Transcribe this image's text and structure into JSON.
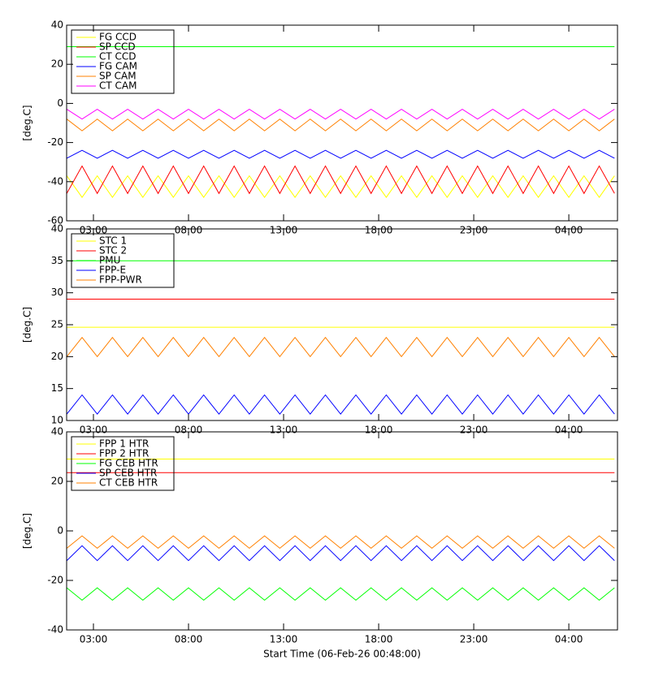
{
  "chart_data": [
    {
      "type": "line",
      "ylabel": "[deg.C]",
      "x": [
        1.6,
        2.4,
        3.2,
        4,
        4.8,
        5.6,
        6.4,
        7.2,
        8,
        8.8,
        9.6,
        10.4,
        11.2,
        12,
        12.8,
        13.6,
        14.4,
        15.2,
        16,
        16.8,
        17.6,
        18.4,
        19.2,
        20,
        20.8,
        21.6,
        22.4,
        23.2,
        24,
        24.8,
        25.6,
        26.4,
        27.2,
        28,
        28.8,
        29.6,
        30.4
      ],
      "xlim": [
        1.59,
        30.56
      ],
      "xticks": [
        {
          "value": 3,
          "label": "03:00"
        },
        {
          "value": 8,
          "label": "08:00"
        },
        {
          "value": 13,
          "label": "13:00"
        },
        {
          "value": 18,
          "label": "18:00"
        },
        {
          "value": 23,
          "label": "23:00"
        },
        {
          "value": 28,
          "label": "04:00"
        }
      ],
      "ylim": [
        -60,
        40
      ],
      "yticks": [
        -60,
        -40,
        -20,
        0,
        20,
        40
      ],
      "series": [
        {
          "name": "FG CCD",
          "color": "#ffff00",
          "values": [
            -37,
            -48,
            -37,
            -48,
            -37,
            -48,
            -37,
            -48,
            -37,
            -48,
            -37,
            -48,
            -37,
            -48,
            -37,
            -48,
            -37,
            -48,
            -37,
            -48,
            -37,
            -48,
            -37,
            -48,
            -37,
            -48,
            -37,
            -48,
            -37,
            -48,
            -37,
            -48,
            -37,
            -48,
            -37,
            -48,
            -37
          ]
        },
        {
          "name": "SP CCD",
          "color": "#ff0000",
          "values": [
            -46,
            -32,
            -46,
            -32,
            -46,
            -32,
            -46,
            -32,
            -46,
            -32,
            -46,
            -32,
            -46,
            -32,
            -46,
            -32,
            -46,
            -32,
            -46,
            -32,
            -46,
            -32,
            -46,
            -32,
            -46,
            -32,
            -46,
            -32,
            -46,
            -32,
            -46,
            -32,
            -46,
            -32,
            -46,
            -32,
            -46
          ]
        },
        {
          "name": "CT CCD",
          "color": "#00ff00",
          "values": [
            29,
            29,
            29,
            29,
            29,
            29,
            29,
            29,
            29,
            29,
            29,
            29,
            29,
            29,
            29,
            29,
            29,
            29,
            29,
            29,
            29,
            29,
            29,
            29,
            29,
            29,
            29,
            29,
            29,
            29,
            29,
            29,
            29,
            29,
            29,
            29,
            29
          ]
        },
        {
          "name": "FG CAM",
          "color": "#0000ff",
          "values": [
            -28,
            -24,
            -28,
            -24,
            -28,
            -24,
            -28,
            -24,
            -28,
            -24,
            -28,
            -24,
            -28,
            -24,
            -28,
            -24,
            -28,
            -24,
            -28,
            -24,
            -28,
            -24,
            -28,
            -24,
            -28,
            -24,
            -28,
            -24,
            -28,
            -24,
            -28,
            -24,
            -28,
            -24,
            -28,
            -24,
            -28
          ]
        },
        {
          "name": "SP CAM",
          "color": "#ff8000",
          "values": [
            -8,
            -14,
            -8,
            -14,
            -8,
            -14,
            -8,
            -14,
            -8,
            -14,
            -8,
            -14,
            -8,
            -14,
            -8,
            -14,
            -8,
            -14,
            -8,
            -14,
            -8,
            -14,
            -8,
            -14,
            -8,
            -14,
            -8,
            -14,
            -8,
            -14,
            -8,
            -14,
            -8,
            -14,
            -8,
            -14,
            -8
          ]
        },
        {
          "name": "CT CAM",
          "color": "#ff00ff",
          "values": [
            -3,
            -8,
            -3,
            -8,
            -3,
            -8,
            -3,
            -8,
            -3,
            -8,
            -3,
            -8,
            -3,
            -8,
            -3,
            -8,
            -3,
            -8,
            -3,
            -8,
            -3,
            -8,
            -3,
            -8,
            -3,
            -8,
            -3,
            -8,
            -3,
            -8,
            -3,
            -8,
            -3,
            -8,
            -3,
            -8,
            -3
          ]
        }
      ]
    },
    {
      "type": "line",
      "ylabel": "[deg.C]",
      "x": [
        1.6,
        2.4,
        3.2,
        4,
        4.8,
        5.6,
        6.4,
        7.2,
        8,
        8.8,
        9.6,
        10.4,
        11.2,
        12,
        12.8,
        13.6,
        14.4,
        15.2,
        16,
        16.8,
        17.6,
        18.4,
        19.2,
        20,
        20.8,
        21.6,
        22.4,
        23.2,
        24,
        24.8,
        25.6,
        26.4,
        27.2,
        28,
        28.8,
        29.6,
        30.4
      ],
      "xlim": [
        1.59,
        30.56
      ],
      "xticks": [
        {
          "value": 3,
          "label": "03:00"
        },
        {
          "value": 8,
          "label": "08:00"
        },
        {
          "value": 13,
          "label": "13:00"
        },
        {
          "value": 18,
          "label": "18:00"
        },
        {
          "value": 23,
          "label": "23:00"
        },
        {
          "value": 28,
          "label": "04:00"
        }
      ],
      "ylim": [
        10,
        40
      ],
      "yticks": [
        10,
        15,
        20,
        25,
        30,
        35,
        40
      ],
      "series": [
        {
          "name": "STC 1",
          "color": "#ffff00",
          "values": [
            24.6,
            24.6,
            24.6,
            24.6,
            24.6,
            24.6,
            24.6,
            24.6,
            24.6,
            24.6,
            24.6,
            24.6,
            24.6,
            24.6,
            24.6,
            24.6,
            24.6,
            24.6,
            24.6,
            24.6,
            24.6,
            24.6,
            24.6,
            24.6,
            24.6,
            24.6,
            24.6,
            24.6,
            24.6,
            24.6,
            24.6,
            24.6,
            24.6,
            24.6,
            24.6,
            24.6,
            24.6
          ]
        },
        {
          "name": "STC 2",
          "color": "#ff0000",
          "values": [
            29,
            29,
            29,
            29,
            29,
            29,
            29,
            29,
            29,
            29,
            29,
            29,
            29,
            29,
            29,
            29,
            29,
            29,
            29,
            29,
            29,
            29,
            29,
            29,
            29,
            29,
            29,
            29,
            29,
            29,
            29,
            29,
            29,
            29,
            29,
            29,
            29
          ]
        },
        {
          "name": "PMU",
          "color": "#00ff00",
          "values": [
            35,
            35,
            35,
            35,
            35,
            35,
            35,
            35,
            35,
            35,
            35,
            35,
            35,
            35,
            35,
            35,
            35,
            35,
            35,
            35,
            35,
            35,
            35,
            35,
            35,
            35,
            35,
            35,
            35,
            35,
            35,
            35,
            35,
            35,
            35,
            35,
            35
          ]
        },
        {
          "name": "FPP-E",
          "color": "#0000ff",
          "values": [
            11,
            14,
            11,
            14,
            11,
            14,
            11,
            14,
            11,
            14,
            11,
            14,
            11,
            14,
            11,
            14,
            11,
            14,
            11,
            14,
            11,
            14,
            11,
            14,
            11,
            14,
            11,
            14,
            11,
            14,
            11,
            14,
            11,
            14,
            11,
            14,
            11
          ]
        },
        {
          "name": "FPP-PWR",
          "color": "#ff8000",
          "values": [
            20,
            23,
            20,
            23,
            20,
            23,
            20,
            23,
            20,
            23,
            20,
            23,
            20,
            23,
            20,
            23,
            20,
            23,
            20,
            23,
            20,
            23,
            20,
            23,
            20,
            23,
            20,
            23,
            20,
            23,
            20,
            23,
            20,
            23,
            20,
            23,
            20
          ]
        }
      ]
    },
    {
      "type": "line",
      "ylabel": "[deg.C]",
      "xlabel": "Start Time (06-Feb-26 00:48:00)",
      "x": [
        1.6,
        2.4,
        3.2,
        4,
        4.8,
        5.6,
        6.4,
        7.2,
        8,
        8.8,
        9.6,
        10.4,
        11.2,
        12,
        12.8,
        13.6,
        14.4,
        15.2,
        16,
        16.8,
        17.6,
        18.4,
        19.2,
        20,
        20.8,
        21.6,
        22.4,
        23.2,
        24,
        24.8,
        25.6,
        26.4,
        27.2,
        28,
        28.8,
        29.6,
        30.4
      ],
      "xlim": [
        1.59,
        30.56
      ],
      "xticks": [
        {
          "value": 3,
          "label": "03:00"
        },
        {
          "value": 8,
          "label": "08:00"
        },
        {
          "value": 13,
          "label": "13:00"
        },
        {
          "value": 18,
          "label": "18:00"
        },
        {
          "value": 23,
          "label": "23:00"
        },
        {
          "value": 28,
          "label": "04:00"
        }
      ],
      "ylim": [
        -40,
        40
      ],
      "yticks": [
        -40,
        -20,
        0,
        20,
        40
      ],
      "series": [
        {
          "name": "FPP 1 HTR",
          "color": "#ffff00",
          "values": [
            29,
            29,
            29,
            29,
            29,
            29,
            29,
            29,
            29,
            29,
            29,
            29,
            29,
            29,
            29,
            29,
            29,
            29,
            29,
            29,
            29,
            29,
            29,
            29,
            29,
            29,
            29,
            29,
            29,
            29,
            29,
            29,
            29,
            29,
            29,
            29,
            29
          ]
        },
        {
          "name": "FPP 2 HTR",
          "color": "#ff0000",
          "values": [
            23.5,
            23.5,
            23.5,
            23.5,
            23.5,
            23.5,
            23.5,
            23.5,
            23.5,
            23.5,
            23.5,
            23.5,
            23.5,
            23.5,
            23.5,
            23.5,
            23.5,
            23.5,
            23.5,
            23.5,
            23.5,
            23.5,
            23.5,
            23.5,
            23.5,
            23.5,
            23.5,
            23.5,
            23.5,
            23.5,
            23.5,
            23.5,
            23.5,
            23.5,
            23.5,
            23.5,
            23.5
          ]
        },
        {
          "name": "FG CEB HTR",
          "color": "#00ff00",
          "values": [
            -23,
            -28,
            -23,
            -28,
            -23,
            -28,
            -23,
            -28,
            -23,
            -28,
            -23,
            -28,
            -23,
            -28,
            -23,
            -28,
            -23,
            -28,
            -23,
            -28,
            -23,
            -28,
            -23,
            -28,
            -23,
            -28,
            -23,
            -28,
            -23,
            -28,
            -23,
            -28,
            -23,
            -28,
            -23,
            -28,
            -23
          ]
        },
        {
          "name": "SP CEB HTR",
          "color": "#0000ff",
          "values": [
            -12,
            -6,
            -12,
            -6,
            -12,
            -6,
            -12,
            -6,
            -12,
            -6,
            -12,
            -6,
            -12,
            -6,
            -12,
            -6,
            -12,
            -6,
            -12,
            -6,
            -12,
            -6,
            -12,
            -6,
            -12,
            -6,
            -12,
            -6,
            -12,
            -6,
            -12,
            -6,
            -12,
            -6,
            -12,
            -6,
            -12
          ]
        },
        {
          "name": "CT CEB HTR",
          "color": "#ff8000",
          "values": [
            -7,
            -2,
            -7,
            -2,
            -7,
            -2,
            -7,
            -2,
            -7,
            -2,
            -7,
            -2,
            -7,
            -2,
            -7,
            -2,
            -7,
            -2,
            -7,
            -2,
            -7,
            -2,
            -7,
            -2,
            -7,
            -2,
            -7,
            -2,
            -7,
            -2,
            -7,
            -2,
            -7,
            -2,
            -7,
            -2,
            -7
          ]
        }
      ]
    }
  ]
}
